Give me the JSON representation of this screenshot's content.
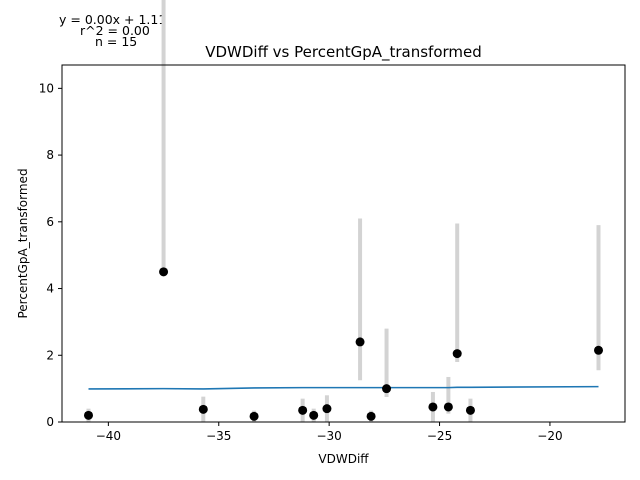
{
  "annotations": {
    "equation": "y = 0.00x + 1.11",
    "r2": "r^2 = 0.00",
    "n": "n = 15"
  },
  "chart_data": {
    "type": "scatter",
    "title": "VDWDiff vs PercentGpA_transformed",
    "xlabel": "VDWDiff",
    "ylabel": "PercentGpA_transformed",
    "xlim": [
      -42.1,
      -16.6
    ],
    "ylim": [
      0,
      10.7
    ],
    "xticks": [
      -40,
      -35,
      -30,
      -25,
      -20
    ],
    "yticks": [
      0,
      2,
      4,
      6,
      8,
      10
    ],
    "grid": false,
    "colors": {
      "points": "#000000",
      "errorbars": "#d3d3d3",
      "fit": "#1f77b4"
    },
    "points": [
      {
        "x": -40.9,
        "y": 0.2,
        "err_low": 0.2,
        "err_high": 0.2
      },
      {
        "x": -37.5,
        "y": 4.5,
        "err_low": 0.0,
        "err_high": 10.1
      },
      {
        "x": -35.7,
        "y": 0.38,
        "err_low": 0.38,
        "err_high": 0.38
      },
      {
        "x": -33.4,
        "y": 0.17,
        "err_low": 0.17,
        "err_high": 0.17
      },
      {
        "x": -31.2,
        "y": 0.35,
        "err_low": 0.35,
        "err_high": 0.35
      },
      {
        "x": -30.7,
        "y": 0.2,
        "err_low": 0.2,
        "err_high": 0.2
      },
      {
        "x": -30.1,
        "y": 0.4,
        "err_low": 0.4,
        "err_high": 0.4
      },
      {
        "x": -28.6,
        "y": 2.4,
        "err_low": 1.15,
        "err_high": 3.7
      },
      {
        "x": -28.1,
        "y": 0.17,
        "err_low": 0.17,
        "err_high": 0.17
      },
      {
        "x": -27.4,
        "y": 1.0,
        "err_low": 0.25,
        "err_high": 1.8
      },
      {
        "x": -25.3,
        "y": 0.45,
        "err_low": 0.45,
        "err_high": 0.45
      },
      {
        "x": -24.6,
        "y": 0.45,
        "err_low": 0.2,
        "err_high": 0.9
      },
      {
        "x": -24.2,
        "y": 2.05,
        "err_low": 0.25,
        "err_high": 3.9
      },
      {
        "x": -23.6,
        "y": 0.35,
        "err_low": 0.35,
        "err_high": 0.35
      },
      {
        "x": -17.8,
        "y": 2.15,
        "err_low": 0.6,
        "err_high": 3.75
      }
    ],
    "fit_line": {
      "x": [
        -40.9,
        -37.5,
        -35.7,
        -33.4,
        -31.2,
        -30.7,
        -30.1,
        -28.6,
        -28.1,
        -27.4,
        -25.3,
        -24.6,
        -24.2,
        -23.6,
        -17.8
      ],
      "y": [
        0.99,
        1.0,
        0.99,
        1.02,
        1.03,
        1.03,
        1.03,
        1.03,
        1.03,
        1.03,
        1.03,
        1.03,
        1.04,
        1.04,
        1.06
      ]
    }
  }
}
